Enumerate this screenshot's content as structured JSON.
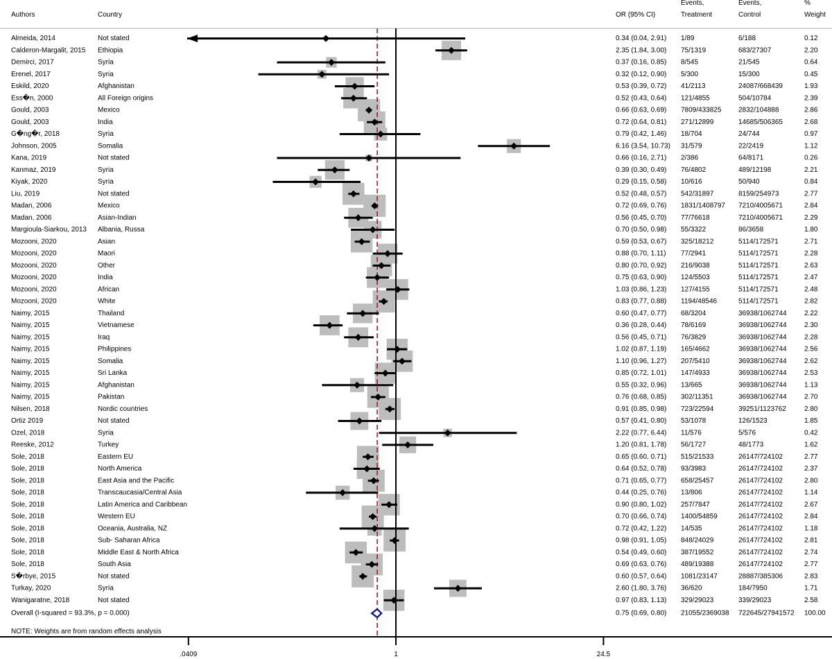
{
  "chart_data": {
    "type": "forest",
    "x_scale": "log",
    "xlim": [
      0.0409,
      24.5
    ],
    "x_ticks": [
      {
        "value": 0.0409,
        "label": ".0409"
      },
      {
        "value": 1,
        "label": "1"
      },
      {
        "value": 24.5,
        "label": "24.5"
      }
    ],
    "null_line": 1,
    "overall_line": 0.75,
    "headers": {
      "authors": "Authors",
      "country": "Country",
      "or": "OR (95% CI)",
      "events_treatment_1": "Events,",
      "events_treatment_2": "Treatment",
      "events_control_1": "Events,",
      "events_control_2": "Control",
      "weight_1": "%",
      "weight_2": "Weight"
    },
    "studies": [
      {
        "author": "Almeida, 2014",
        "country": "Not stated",
        "or": 0.34,
        "lo": 0.04,
        "hi": 2.91,
        "or_text": "0.34 (0.04, 2.91)",
        "events_t": "1/89",
        "events_c": "6/188",
        "weight": "0.12"
      },
      {
        "author": "Calderon-Margalit, 2015",
        "country": "Ethiopia",
        "or": 2.35,
        "lo": 1.84,
        "hi": 3.0,
        "or_text": "2.35 (1.84, 3.00)",
        "events_t": "75/1319",
        "events_c": "683/27307",
        "weight": "2.20"
      },
      {
        "author": "Demirci, 2017",
        "country": "Syria",
        "or": 0.37,
        "lo": 0.16,
        "hi": 0.85,
        "or_text": "0.37 (0.16, 0.85)",
        "events_t": "8/545",
        "events_c": "21/545",
        "weight": "0.64"
      },
      {
        "author": "Erenel, 2017",
        "country": "Syria",
        "or": 0.32,
        "lo": 0.12,
        "hi": 0.9,
        "or_text": "0.32 (0.12, 0.90)",
        "events_t": "5/300",
        "events_c": "15/300",
        "weight": "0.45"
      },
      {
        "author": "Eskild, 2020",
        "country": "Afghanistan",
        "or": 0.53,
        "lo": 0.39,
        "hi": 0.72,
        "or_text": "0.53 (0.39, 0.72)",
        "events_t": "41/2113",
        "events_c": "24087/668439",
        "weight": "1.93"
      },
      {
        "author": "Ess�n, 2000",
        "country": "All Foreign origins",
        "or": 0.52,
        "lo": 0.43,
        "hi": 0.64,
        "or_text": "0.52 (0.43, 0.64)",
        "events_t": "121/4855",
        "events_c": "504/10784",
        "weight": "2.39"
      },
      {
        "author": "Gould, 2003",
        "country": "Mexico",
        "or": 0.66,
        "lo": 0.63,
        "hi": 0.69,
        "or_text": "0.66 (0.63, 0.69)",
        "events_t": "7809/433825",
        "events_c": "2832/104888",
        "weight": "2.86"
      },
      {
        "author": "Gould, 2003",
        "country": "India",
        "or": 0.72,
        "lo": 0.64,
        "hi": 0.81,
        "or_text": "0.72 (0.64, 0.81)",
        "events_t": "271/12899",
        "events_c": "14685/506365",
        "weight": "2.68"
      },
      {
        "author": "G�ng�r, 2018",
        "country": "Syria",
        "or": 0.79,
        "lo": 0.42,
        "hi": 1.46,
        "or_text": "0.79 (0.42, 1.46)",
        "events_t": "18/704",
        "events_c": "24/744",
        "weight": "0.97"
      },
      {
        "author": "Johnson, 2005",
        "country": "Somalia",
        "or": 6.16,
        "lo": 3.54,
        "hi": 10.73,
        "or_text": "6.16 (3.54, 10.73)",
        "events_t": "31/579",
        "events_c": "22/2419",
        "weight": "1.12"
      },
      {
        "author": "Kana, 2019",
        "country": "Not stated",
        "or": 0.66,
        "lo": 0.16,
        "hi": 2.71,
        "or_text": "0.66 (0.16, 2.71)",
        "events_t": "2/386",
        "events_c": "64/8171",
        "weight": "0.26"
      },
      {
        "author": "Kanmaz, 2019",
        "country": "Syria",
        "or": 0.39,
        "lo": 0.3,
        "hi": 0.49,
        "or_text": "0.39 (0.30, 0.49)",
        "events_t": "76/4802",
        "events_c": "489/12198",
        "weight": "2.21"
      },
      {
        "author": "Kiyak, 2020",
        "country": "Syria",
        "or": 0.29,
        "lo": 0.15,
        "hi": 0.58,
        "or_text": "0.29 (0.15, 0.58)",
        "events_t": "10/616",
        "events_c": "50/940",
        "weight": "0.84"
      },
      {
        "author": "Liu, 2019",
        "country": "Not stated",
        "or": 0.52,
        "lo": 0.48,
        "hi": 0.57,
        "or_text": "0.52 (0.48, 0.57)",
        "events_t": "542/31897",
        "events_c": "8159/254973",
        "weight": "2.77"
      },
      {
        "author": "Madan, 2006",
        "country": "Mexico",
        "or": 0.72,
        "lo": 0.69,
        "hi": 0.76,
        "or_text": "0.72 (0.69, 0.76)",
        "events_t": "1831/1408797",
        "events_c": "7210/4005671",
        "weight": "2.84"
      },
      {
        "author": "Madan, 2006",
        "country": "Asian-Indian",
        "or": 0.56,
        "lo": 0.45,
        "hi": 0.7,
        "or_text": "0.56 (0.45, 0.70)",
        "events_t": "77/76618",
        "events_c": "7210/4005671",
        "weight": "2.29"
      },
      {
        "author": "Margioula-Siarkou, 2013",
        "country": "Albania, Russa",
        "or": 0.7,
        "lo": 0.5,
        "hi": 0.98,
        "or_text": "0.70 (0.50, 0.98)",
        "events_t": "55/3322",
        "events_c": "86/3658",
        "weight": "1.80"
      },
      {
        "author": "Mozooni, 2020",
        "country": "Asian",
        "or": 0.59,
        "lo": 0.53,
        "hi": 0.67,
        "or_text": "0.59 (0.53, 0.67)",
        "events_t": "325/18212",
        "events_c": "5114/172571",
        "weight": "2.71"
      },
      {
        "author": "Mozooni, 2020",
        "country": "Maori",
        "or": 0.88,
        "lo": 0.7,
        "hi": 1.11,
        "or_text": "0.88 (0.70, 1.11)",
        "events_t": "77/2941",
        "events_c": "5114/172571",
        "weight": "2.28"
      },
      {
        "author": "Mozooni, 2020",
        "country": "Other",
        "or": 0.8,
        "lo": 0.7,
        "hi": 0.92,
        "or_text": "0.80 (0.70, 0.92)",
        "events_t": "216/9038",
        "events_c": "5114/172571",
        "weight": "2.63"
      },
      {
        "author": "Mozooni, 2020",
        "country": "India",
        "or": 0.75,
        "lo": 0.63,
        "hi": 0.9,
        "or_text": "0.75 (0.63, 0.90)",
        "events_t": "124/5503",
        "events_c": "5114/172571",
        "weight": "2.47"
      },
      {
        "author": "Mozooni, 2020",
        "country": "African",
        "or": 1.03,
        "lo": 0.86,
        "hi": 1.23,
        "or_text": "1.03 (0.86, 1.23)",
        "events_t": "127/4155",
        "events_c": "5114/172571",
        "weight": "2.48"
      },
      {
        "author": "Mozooni, 2020",
        "country": "White",
        "or": 0.83,
        "lo": 0.77,
        "hi": 0.88,
        "or_text": "0.83 (0.77, 0.88)",
        "events_t": "1194/48546",
        "events_c": "5114/172571",
        "weight": "2.82"
      },
      {
        "author": "Naimy, 2015",
        "country": "Thailand",
        "or": 0.6,
        "lo": 0.47,
        "hi": 0.77,
        "or_text": "0.60 (0.47, 0.77)",
        "events_t": "68/3204",
        "events_c": "36938/1062744",
        "weight": "2.22"
      },
      {
        "author": "Naimy, 2015",
        "country": "Vietnamese",
        "or": 0.36,
        "lo": 0.28,
        "hi": 0.44,
        "or_text": "0.36 (0.28, 0.44)",
        "events_t": "78/6169",
        "events_c": "36938/1062744",
        "weight": "2.30"
      },
      {
        "author": "Naimy, 2015",
        "country": "Iraq",
        "or": 0.56,
        "lo": 0.45,
        "hi": 0.71,
        "or_text": "0.56 (0.45, 0.71)",
        "events_t": "76/3829",
        "events_c": "36938/1062744",
        "weight": "2.28"
      },
      {
        "author": "Naimy, 2015",
        "country": "Philippines",
        "or": 1.02,
        "lo": 0.87,
        "hi": 1.19,
        "or_text": "1.02 (0.87, 1.19)",
        "events_t": "165/4662",
        "events_c": "36938/1062744",
        "weight": "2.56"
      },
      {
        "author": "Naimy, 2015",
        "country": "Somalia",
        "or": 1.1,
        "lo": 0.96,
        "hi": 1.27,
        "or_text": "1.10 (0.96, 1.27)",
        "events_t": "207/5410",
        "events_c": "36938/1062744",
        "weight": "2.62"
      },
      {
        "author": "Naimy, 2015",
        "country": "Sri Lanka",
        "or": 0.85,
        "lo": 0.72,
        "hi": 1.01,
        "or_text": "0.85 (0.72, 1.01)",
        "events_t": "147/4933",
        "events_c": "36938/1062744",
        "weight": "2.53"
      },
      {
        "author": "Naimy, 2015",
        "country": "Afghanistan",
        "or": 0.55,
        "lo": 0.32,
        "hi": 0.96,
        "or_text": "0.55 (0.32, 0.96)",
        "events_t": "13/665",
        "events_c": "36938/1062744",
        "weight": "1.13"
      },
      {
        "author": "Naimy, 2015",
        "country": "Pakistan",
        "or": 0.76,
        "lo": 0.68,
        "hi": 0.85,
        "or_text": "0.76 (0.68, 0.85)",
        "events_t": "302/11351",
        "events_c": "36938/1062744",
        "weight": "2.70"
      },
      {
        "author": "Nilsen, 2018",
        "country": "Nordic countries",
        "or": 0.91,
        "lo": 0.85,
        "hi": 0.98,
        "or_text": "0.91 (0.85, 0.98)",
        "events_t": "723/22594",
        "events_c": "39251/1123762",
        "weight": "2.80"
      },
      {
        "author": "Ortiz 2019",
        "country": "Not stated",
        "or": 0.57,
        "lo": 0.41,
        "hi": 0.8,
        "or_text": "0.57 (0.41, 0.80)",
        "events_t": "53/1078",
        "events_c": "126/1523",
        "weight": "1.85"
      },
      {
        "author": "Ozel, 2018",
        "country": "Syria",
        "or": 2.22,
        "lo": 0.77,
        "hi": 6.44,
        "or_text": "2.22 (0.77, 6.44)",
        "events_t": "11/576",
        "events_c": "5/576",
        "weight": "0.42"
      },
      {
        "author": "Reeske, 2012",
        "country": "Turkey",
        "or": 1.2,
        "lo": 0.81,
        "hi": 1.78,
        "or_text": "1.20 (0.81, 1.78)",
        "events_t": "56/1727",
        "events_c": "48/1773",
        "weight": "1.62"
      },
      {
        "author": "Sole, 2018",
        "country": "Eastern EU",
        "or": 0.65,
        "lo": 0.6,
        "hi": 0.71,
        "or_text": "0.65 (0.60, 0.71)",
        "events_t": "515/21533",
        "events_c": "26147/724102",
        "weight": "2.77"
      },
      {
        "author": "Sole, 2018",
        "country": "North America",
        "or": 0.64,
        "lo": 0.52,
        "hi": 0.78,
        "or_text": "0.64 (0.52, 0.78)",
        "events_t": "93/3983",
        "events_c": "26147/724102",
        "weight": "2.37"
      },
      {
        "author": "Sole, 2018",
        "country": "East Asia and the Pacific",
        "or": 0.71,
        "lo": 0.65,
        "hi": 0.77,
        "or_text": "0.71 (0.65, 0.77)",
        "events_t": "658/25457",
        "events_c": "26147/724102",
        "weight": "2.80"
      },
      {
        "author": "Sole, 2018",
        "country": "Transcaucasia/Central Asia",
        "or": 0.44,
        "lo": 0.25,
        "hi": 0.76,
        "or_text": "0.44 (0.25, 0.76)",
        "events_t": "13/806",
        "events_c": "26147/724102",
        "weight": "1.14"
      },
      {
        "author": "Sole, 2018",
        "country": "Latin America and Caribbean",
        "or": 0.9,
        "lo": 0.8,
        "hi": 1.02,
        "or_text": "0.90 (0.80, 1.02)",
        "events_t": "257/7847",
        "events_c": "26147/724102",
        "weight": "2.67"
      },
      {
        "author": "Sole, 2018",
        "country": "Western EU",
        "or": 0.7,
        "lo": 0.66,
        "hi": 0.74,
        "or_text": "0.70 (0.66, 0.74)",
        "events_t": "1400/54859",
        "events_c": "26147/724102",
        "weight": "2.84"
      },
      {
        "author": "Sole, 2018",
        "country": "Oceania, Australia, NZ",
        "or": 0.72,
        "lo": 0.42,
        "hi": 1.22,
        "or_text": "0.72 (0.42, 1.22)",
        "events_t": "14/535",
        "events_c": "26147/724102",
        "weight": "1.18"
      },
      {
        "author": "Sole, 2018",
        "country": "Sub- Saharan Africa",
        "or": 0.98,
        "lo": 0.91,
        "hi": 1.05,
        "or_text": "0.98 (0.91, 1.05)",
        "events_t": "848/24029",
        "events_c": "26147/724102",
        "weight": "2.81"
      },
      {
        "author": "Sole, 2018",
        "country": "Middle East & North Africa",
        "or": 0.54,
        "lo": 0.49,
        "hi": 0.6,
        "or_text": "0.54 (0.49, 0.60)",
        "events_t": "387/19552",
        "events_c": "26147/724102",
        "weight": "2.74"
      },
      {
        "author": "Sole, 2018",
        "country": "South Asia",
        "or": 0.69,
        "lo": 0.63,
        "hi": 0.76,
        "or_text": "0.69 (0.63, 0.76)",
        "events_t": "489/19388",
        "events_c": "26147/724102",
        "weight": "2.77"
      },
      {
        "author": "S�rbye, 2015",
        "country": "Not stated",
        "or": 0.6,
        "lo": 0.57,
        "hi": 0.64,
        "or_text": "0.60 (0.57, 0.64)",
        "events_t": "1081/23147",
        "events_c": "28887/385306",
        "weight": "2.83"
      },
      {
        "author": "Turkay, 2020",
        "country": "Syria",
        "or": 2.6,
        "lo": 1.8,
        "hi": 3.76,
        "or_text": "2.60 (1.80, 3.76)",
        "events_t": "36/620",
        "events_c": "184/7950",
        "weight": "1.71"
      },
      {
        "author": "Wanigaratne, 2018",
        "country": "Not stated",
        "or": 0.97,
        "lo": 0.83,
        "hi": 1.13,
        "or_text": "0.97 (0.83, 1.13)",
        "events_t": "329/29023",
        "events_c": "339/29023",
        "weight": "2.58"
      }
    ],
    "overall": {
      "label": "Overall  (I-squared = 93.3%, p = 0.000)",
      "or": 0.75,
      "lo": 0.69,
      "hi": 0.8,
      "or_text": "0.75 (0.69, 0.80)",
      "events_t": "21055/2369038",
      "events_c": "722645/27941572",
      "weight": "100.00"
    },
    "note": "NOTE: Weights are from random effects analysis",
    "colors": {
      "box": "#bdbdbd",
      "point": "#000000",
      "ci_line": "#000000",
      "overall_line": "#8b1a1a",
      "diamond": "#1a237e"
    }
  }
}
